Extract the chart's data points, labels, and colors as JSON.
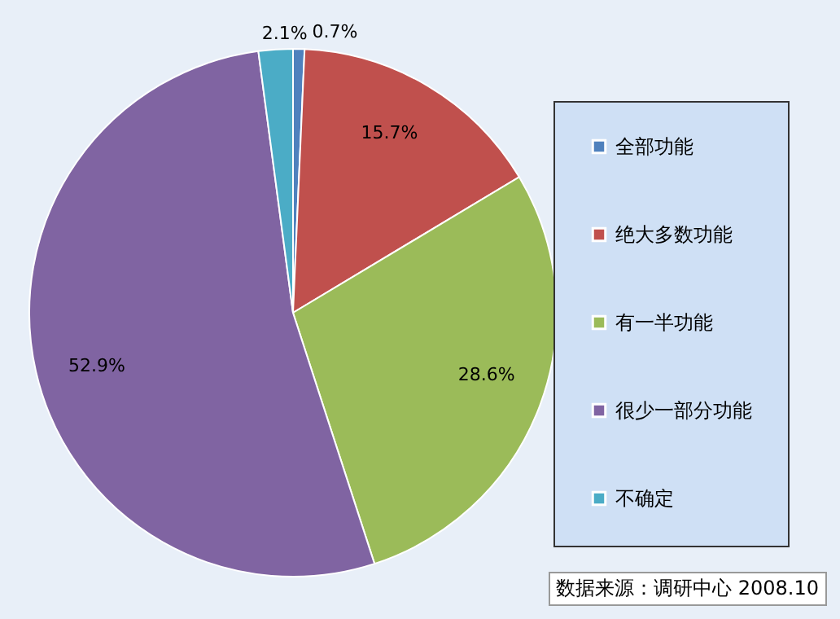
{
  "chart_data": {
    "type": "pie",
    "categories": [
      "全部功能",
      "绝大多数功能",
      "有一半功能",
      "很少一部分功能",
      "不确定"
    ],
    "values": [
      0.7,
      15.7,
      28.6,
      52.9,
      2.1
    ],
    "colors": [
      "#4f81bd",
      "#c0504d",
      "#9bbb59",
      "#8064a2",
      "#4bacc6"
    ],
    "value_labels": [
      "0.7%",
      "15.7%",
      "28.6%",
      "52.9%",
      "2.1%"
    ],
    "legend": "right",
    "annotations": [
      "数据来源：调研中心 2008.10"
    ]
  }
}
